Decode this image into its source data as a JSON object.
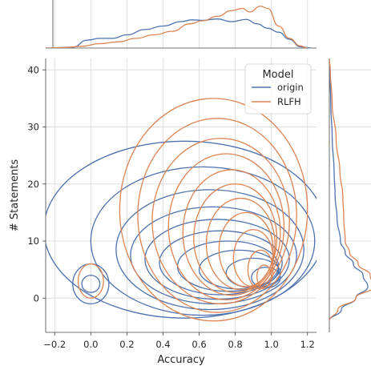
{
  "chart_data": {
    "type": "kde-joint",
    "xlabel": "Accuracy",
    "ylabel": "# Statements",
    "xlim": [
      -0.25,
      1.25
    ],
    "ylim": [
      -6,
      42
    ],
    "xticks": [
      -0.2,
      0.0,
      0.2,
      0.4,
      0.6,
      0.8,
      1.0,
      1.2
    ],
    "xtick_labels": [
      "−0.2",
      "0.0",
      "0.2",
      "0.4",
      "0.6",
      "0.8",
      "1.0",
      "1.2"
    ],
    "yticks": [
      0,
      10,
      20,
      30,
      40
    ],
    "ytick_labels": [
      "0",
      "10",
      "20",
      "30",
      "40"
    ],
    "grid": true,
    "legend": {
      "title": "Model",
      "placement": "top-right",
      "entries": [
        {
          "label": "origin",
          "color": "#4c72b0"
        },
        {
          "label": "RLFH",
          "color": "#dd8452"
        }
      ]
    },
    "series": [
      {
        "name": "origin",
        "color": "#4c72b0",
        "x_marginal": [
          [
            -0.25,
            0
          ],
          [
            -0.1,
            0.02
          ],
          [
            -0.02,
            0.18
          ],
          [
            0.05,
            0.22
          ],
          [
            0.12,
            0.22
          ],
          [
            0.2,
            0.3
          ],
          [
            0.3,
            0.42
          ],
          [
            0.4,
            0.5
          ],
          [
            0.5,
            0.6
          ],
          [
            0.56,
            0.64
          ],
          [
            0.62,
            0.63
          ],
          [
            0.7,
            0.66
          ],
          [
            0.78,
            0.6
          ],
          [
            0.86,
            0.65
          ],
          [
            0.92,
            0.55
          ],
          [
            0.98,
            0.45
          ],
          [
            1.04,
            0.36
          ],
          [
            1.1,
            0.2
          ],
          [
            1.16,
            0.03
          ],
          [
            1.22,
            0
          ]
        ],
        "y_marginal": [
          [
            -4,
            0
          ],
          [
            -2,
            0.25
          ],
          [
            0,
            0.55
          ],
          [
            2,
            0.8
          ],
          [
            4,
            0.7
          ],
          [
            6,
            0.5
          ],
          [
            8,
            0.33
          ],
          [
            10,
            0.23
          ],
          [
            14,
            0.16
          ],
          [
            18,
            0.12
          ],
          [
            22,
            0.1
          ],
          [
            28,
            0.06
          ],
          [
            34,
            0.03
          ],
          [
            40,
            0.01
          ],
          [
            42,
            0
          ]
        ],
        "contours": [
          {
            "cx": 0.52,
            "cy": 12.0,
            "rx": 0.78,
            "ry": 15.5,
            "tilt": 0
          },
          {
            "cx": 0.62,
            "cy": 10.0,
            "rx": 0.62,
            "ry": 13.0,
            "tilt": 0
          },
          {
            "cx": 0.66,
            "cy": 8.5,
            "rx": 0.52,
            "ry": 10.5,
            "tilt": 0
          },
          {
            "cx": 0.68,
            "cy": 7.5,
            "rx": 0.46,
            "ry": 8.5,
            "tilt": 0
          },
          {
            "cx": 0.7,
            "cy": 6.8,
            "rx": 0.4,
            "ry": 7.0,
            "tilt": 0
          },
          {
            "cx": 0.72,
            "cy": 6.2,
            "rx": 0.34,
            "ry": 5.6,
            "tilt": 0
          },
          {
            "cx": 0.76,
            "cy": 5.6,
            "rx": 0.28,
            "ry": 4.4,
            "tilt": 0
          },
          {
            "cx": 0.82,
            "cy": 5.0,
            "rx": 0.22,
            "ry": 3.4,
            "tilt": 0
          },
          {
            "cx": 0.9,
            "cy": 4.4,
            "rx": 0.15,
            "ry": 2.6,
            "tilt": 0
          },
          {
            "cx": 0.97,
            "cy": 3.6,
            "rx": 0.08,
            "ry": 1.8,
            "tilt": 0
          },
          {
            "cx": 0.0,
            "cy": 2.5,
            "rx": 0.1,
            "ry": 3.5,
            "tilt": 0
          },
          {
            "cx": 0.0,
            "cy": 2.5,
            "rx": 0.05,
            "ry": 1.5,
            "tilt": 0
          }
        ]
      },
      {
        "name": "RLFH",
        "color": "#dd8452",
        "x_marginal": [
          [
            -0.25,
            0
          ],
          [
            -0.15,
            0.01
          ],
          [
            -0.05,
            0.04
          ],
          [
            0.05,
            0.1
          ],
          [
            0.15,
            0.14
          ],
          [
            0.25,
            0.22
          ],
          [
            0.35,
            0.3
          ],
          [
            0.45,
            0.38
          ],
          [
            0.55,
            0.55
          ],
          [
            0.62,
            0.62
          ],
          [
            0.7,
            0.72
          ],
          [
            0.78,
            0.85
          ],
          [
            0.84,
            0.9
          ],
          [
            0.88,
            0.82
          ],
          [
            0.94,
            0.95
          ],
          [
            0.98,
            0.9
          ],
          [
            1.04,
            0.5
          ],
          [
            1.1,
            0.22
          ],
          [
            1.16,
            0.05
          ],
          [
            1.2,
            0
          ]
        ],
        "y_marginal": [
          [
            -4,
            0
          ],
          [
            -2,
            0.18
          ],
          [
            0,
            0.55
          ],
          [
            2,
            0.92
          ],
          [
            4,
            0.85
          ],
          [
            6,
            0.6
          ],
          [
            8,
            0.42
          ],
          [
            10,
            0.33
          ],
          [
            14,
            0.3
          ],
          [
            18,
            0.28
          ],
          [
            22,
            0.22
          ],
          [
            28,
            0.14
          ],
          [
            34,
            0.06
          ],
          [
            40,
            0.02
          ],
          [
            42,
            0
          ]
        ],
        "contours": [
          {
            "cx": 0.68,
            "cy": 15.5,
            "rx": 0.52,
            "ry": 19.5,
            "tilt": 0
          },
          {
            "cx": 0.7,
            "cy": 14.5,
            "rx": 0.44,
            "ry": 17.0,
            "tilt": 0
          },
          {
            "cx": 0.72,
            "cy": 13.5,
            "rx": 0.38,
            "ry": 14.5,
            "tilt": 0
          },
          {
            "cx": 0.75,
            "cy": 12.5,
            "rx": 0.32,
            "ry": 12.8,
            "tilt": 0
          },
          {
            "cx": 0.78,
            "cy": 11.5,
            "rx": 0.27,
            "ry": 11.0,
            "tilt": 0
          },
          {
            "cx": 0.8,
            "cy": 10.5,
            "rx": 0.23,
            "ry": 9.5,
            "tilt": 0
          },
          {
            "cx": 0.83,
            "cy": 9.5,
            "rx": 0.19,
            "ry": 8.0,
            "tilt": 0
          },
          {
            "cx": 0.86,
            "cy": 8.5,
            "rx": 0.15,
            "ry": 6.5,
            "tilt": 0
          },
          {
            "cx": 0.9,
            "cy": 7.0,
            "rx": 0.11,
            "ry": 5.0,
            "tilt": 0
          },
          {
            "cx": 0.94,
            "cy": 5.0,
            "rx": 0.07,
            "ry": 3.4,
            "tilt": 0
          },
          {
            "cx": 0.96,
            "cy": 3.8,
            "rx": 0.04,
            "ry": 2.0,
            "tilt": 0
          },
          {
            "cx": 0.0,
            "cy": 3.0,
            "rx": 0.07,
            "ry": 3.0,
            "tilt": 0
          }
        ]
      }
    ]
  }
}
